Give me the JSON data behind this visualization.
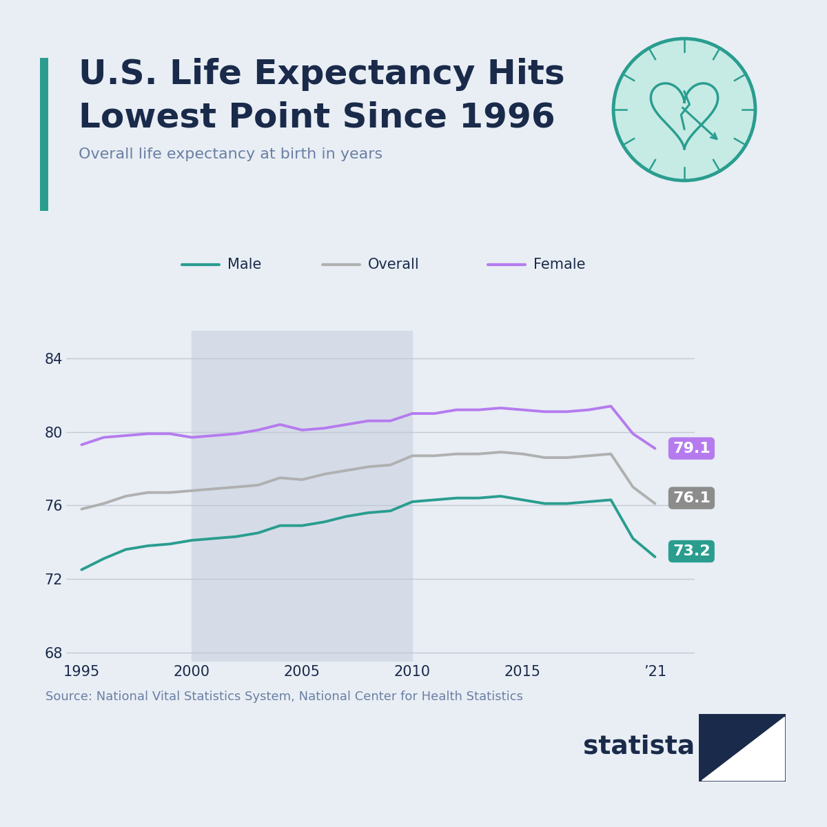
{
  "title_line1": "U.S. Life Expectancy Hits",
  "title_line2": "Lowest Point Since 1996",
  "subtitle": "Overall life expectancy at birth in years",
  "source": "Source: National Vital Statistics System, National Center for Health Statistics",
  "background_color": "#e8eef4",
  "plot_bg_color": "#e8eef4",
  "title_color": "#1a2a4a",
  "subtitle_color": "#6b7fa3",
  "accent_bar_color": "#2a9d8f",
  "years": [
    1995,
    1996,
    1997,
    1998,
    1999,
    2000,
    2001,
    2002,
    2003,
    2004,
    2005,
    2006,
    2007,
    2008,
    2009,
    2010,
    2011,
    2012,
    2013,
    2014,
    2015,
    2016,
    2017,
    2018,
    2019,
    2020,
    2021
  ],
  "male": [
    72.5,
    73.1,
    73.6,
    73.8,
    73.9,
    74.1,
    74.2,
    74.3,
    74.5,
    74.9,
    74.9,
    75.1,
    75.4,
    75.6,
    75.7,
    76.2,
    76.3,
    76.4,
    76.4,
    76.5,
    76.3,
    76.1,
    76.1,
    76.2,
    76.3,
    74.2,
    73.2
  ],
  "overall": [
    75.8,
    76.1,
    76.5,
    76.7,
    76.7,
    76.8,
    76.9,
    77.0,
    77.1,
    77.5,
    77.4,
    77.7,
    77.9,
    78.1,
    78.2,
    78.7,
    78.7,
    78.8,
    78.8,
    78.9,
    78.8,
    78.6,
    78.6,
    78.7,
    78.8,
    77.0,
    76.1
  ],
  "female": [
    79.3,
    79.7,
    79.8,
    79.9,
    79.9,
    79.7,
    79.8,
    79.9,
    80.1,
    80.4,
    80.1,
    80.2,
    80.4,
    80.6,
    80.6,
    81.0,
    81.0,
    81.2,
    81.2,
    81.3,
    81.2,
    81.1,
    81.1,
    81.2,
    81.4,
    79.9,
    79.1
  ],
  "male_color": "#2a9d8f",
  "overall_color": "#b0b0b0",
  "female_color": "#b57bee",
  "male_label": "Male",
  "overall_label": "Overall",
  "female_label": "Female",
  "male_end_value": "73.2",
  "overall_end_value": "76.1",
  "female_end_value": "79.1",
  "male_end_color": "#2a9d8f",
  "overall_end_color": "#8c8c8c",
  "female_end_color": "#b57bee",
  "ylim": [
    67.5,
    85.5
  ],
  "yticks": [
    68,
    72,
    76,
    80,
    84
  ],
  "shade_start": 2000,
  "shade_end": 2010,
  "shade_color": "#d5dce8",
  "grid_color": "#c0c8d5",
  "xtick_labels": [
    "1995",
    "2000",
    "2005",
    "2010",
    "2015",
    "’21"
  ],
  "xtick_positions": [
    1995,
    2000,
    2005,
    2010,
    2015,
    2021
  ],
  "icon_face_color": "#c5ebe4",
  "icon_edge_color": "#2a9d8f",
  "statista_color": "#1a2a4a"
}
